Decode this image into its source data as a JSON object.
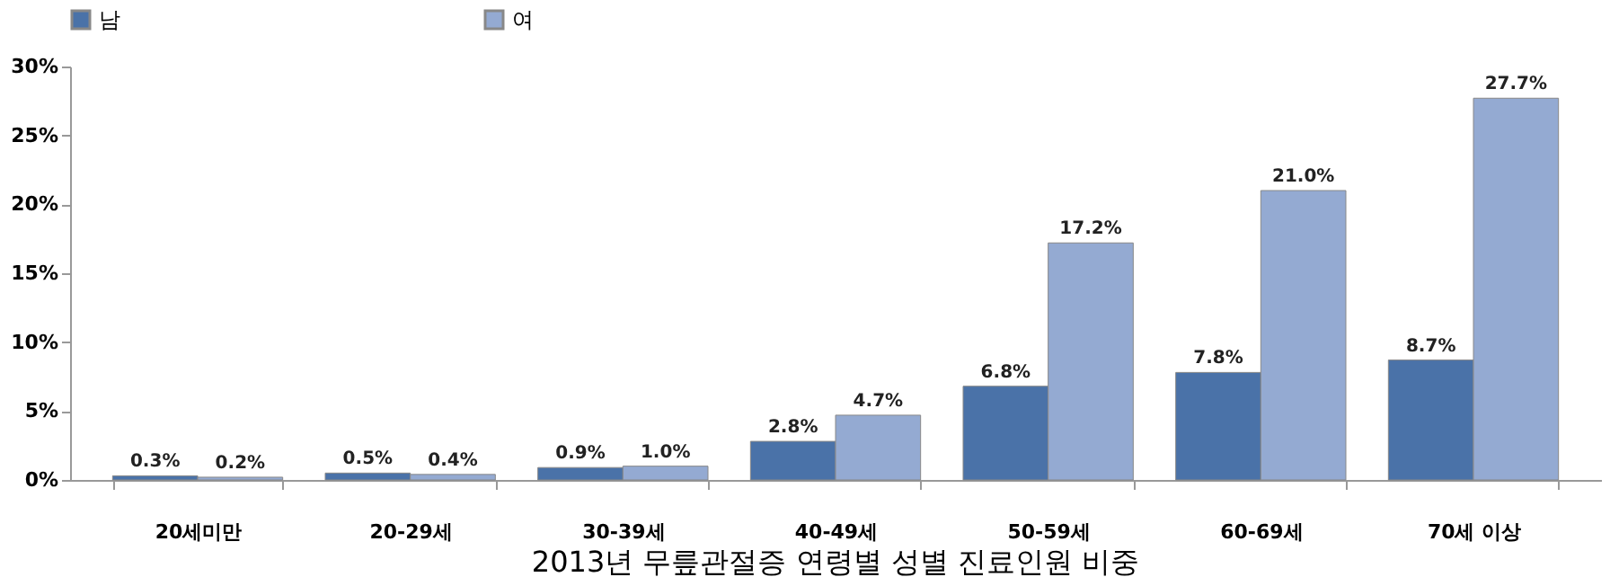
{
  "chart_data": {
    "type": "bar",
    "title": "2013년 무릎관절증 연령별 성별 진료인원 비중",
    "categories": [
      "20세미만",
      "20-29세",
      "30-39세",
      "40-49세",
      "50-59세",
      "60-69세",
      "70세 이상"
    ],
    "series": [
      {
        "name": "남",
        "color": "#4a72a8",
        "values": [
          0.3,
          0.5,
          0.9,
          2.8,
          6.8,
          7.8,
          8.7
        ],
        "value_labels": [
          "0.3%",
          "0.5%",
          "0.9%",
          "2.8%",
          "6.8%",
          "7.8%",
          "8.7%"
        ]
      },
      {
        "name": "여",
        "color": "#94aad2",
        "values": [
          0.2,
          0.4,
          1.0,
          4.7,
          17.2,
          21.0,
          27.7
        ],
        "value_labels": [
          "0.2%",
          "0.4%",
          "1.0%",
          "4.7%",
          "17.2%",
          "21.0%",
          "27.7%"
        ]
      }
    ],
    "ylim": [
      0,
      30
    ],
    "yticks": [
      {
        "value": 0,
        "label": "0%"
      },
      {
        "value": 5,
        "label": "5%"
      },
      {
        "value": 10,
        "label": "10%"
      },
      {
        "value": 15,
        "label": "15%"
      },
      {
        "value": 20,
        "label": "20%"
      },
      {
        "value": 25,
        "label": "25%"
      },
      {
        "value": 30,
        "label": "30%"
      }
    ],
    "grid": false,
    "legend": "top"
  }
}
